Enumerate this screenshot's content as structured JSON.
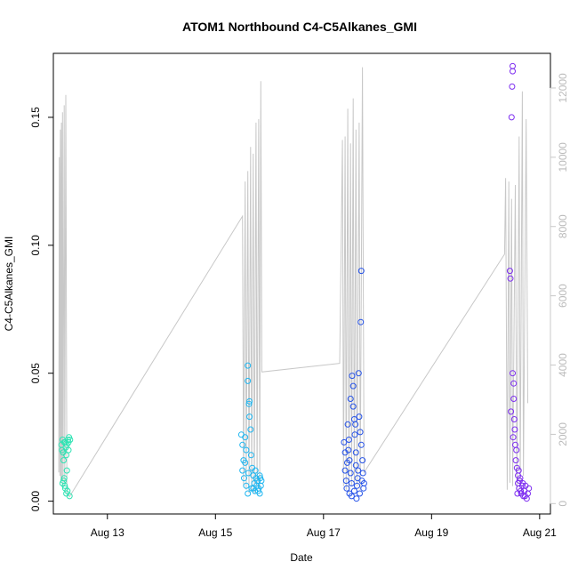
{
  "chart_data": {
    "type": "scatter",
    "title": "ATOM1 Northbound C4-C5Alkanes_GMI",
    "xlabel": "Date",
    "ylabel": "C4-C5Alkanes_GMI",
    "x_ticks": [
      "Aug 13",
      "Aug 15",
      "Aug 17",
      "Aug 19",
      "Aug 21"
    ],
    "y_ticks": [
      "0.00",
      "0.05",
      "0.10",
      "0.15"
    ],
    "y2_ticks": [
      "0",
      "2000",
      "4000",
      "6000",
      "8000",
      "10000",
      "12000"
    ],
    "xlim_days": [
      12.0,
      21.2
    ],
    "ylim": [
      -0.005,
      0.175
    ],
    "y2lim": [
      -300,
      13000
    ],
    "secondary_series_color": "#c8c8c8",
    "series": [
      {
        "color": "#2fe3b3",
        "points": [
          [
            12.15,
            0.022
          ],
          [
            12.16,
            0.02
          ],
          [
            12.17,
            0.024
          ],
          [
            12.18,
            0.019
          ],
          [
            12.19,
            0.016
          ],
          [
            12.2,
            0.023
          ],
          [
            12.2,
            0.009
          ],
          [
            12.21,
            0.006
          ],
          [
            12.22,
            0.023
          ],
          [
            12.22,
            0.005
          ],
          [
            12.23,
            0.021
          ],
          [
            12.24,
            0.018
          ],
          [
            12.25,
            0.022
          ],
          [
            12.25,
            0.012
          ],
          [
            12.26,
            0.004
          ],
          [
            12.27,
            0.024
          ],
          [
            12.28,
            0.02
          ],
          [
            12.29,
            0.025
          ],
          [
            12.3,
            0.002
          ],
          [
            12.31,
            0.024
          ],
          [
            12.17,
            0.007
          ],
          [
            12.19,
            0.008
          ],
          [
            12.24,
            0.003
          ],
          [
            12.28,
            0.023
          ]
        ]
      },
      {
        "color": "#1fb6f0",
        "points": [
          [
            15.48,
            0.026
          ],
          [
            15.5,
            0.022
          ],
          [
            15.52,
            0.016
          ],
          [
            15.5,
            0.012
          ],
          [
            15.53,
            0.009
          ],
          [
            15.55,
            0.025
          ],
          [
            15.55,
            0.015
          ],
          [
            15.57,
            0.006
          ],
          [
            15.6,
            0.053
          ],
          [
            15.6,
            0.047
          ],
          [
            15.62,
            0.038
          ],
          [
            15.63,
            0.039
          ],
          [
            15.63,
            0.033
          ],
          [
            15.65,
            0.028
          ],
          [
            15.6,
            0.003
          ],
          [
            15.66,
            0.018
          ],
          [
            15.68,
            0.013
          ],
          [
            15.7,
            0.01
          ],
          [
            15.7,
            0.005
          ],
          [
            15.72,
            0.007
          ],
          [
            15.73,
            0.004
          ],
          [
            15.75,
            0.009
          ],
          [
            15.76,
            0.006
          ],
          [
            15.78,
            0.008
          ],
          [
            15.8,
            0.005
          ],
          [
            15.82,
            0.01
          ],
          [
            15.82,
            0.003
          ],
          [
            15.84,
            0.006
          ],
          [
            15.85,
            0.008
          ],
          [
            15.57,
            0.02
          ],
          [
            15.61,
            0.011
          ],
          [
            15.67,
            0.005
          ],
          [
            15.74,
            0.012
          ],
          [
            15.79,
            0.004
          ],
          [
            15.83,
            0.009
          ]
        ]
      },
      {
        "color": "#2653e8",
        "points": [
          [
            17.38,
            0.023
          ],
          [
            17.4,
            0.019
          ],
          [
            17.4,
            0.012
          ],
          [
            17.42,
            0.008
          ],
          [
            17.43,
            0.005
          ],
          [
            17.45,
            0.03
          ],
          [
            17.46,
            0.02
          ],
          [
            17.48,
            0.016
          ],
          [
            17.5,
            0.04
          ],
          [
            17.5,
            0.011
          ],
          [
            17.52,
            0.007
          ],
          [
            17.53,
            0.049
          ],
          [
            17.55,
            0.045
          ],
          [
            17.55,
            0.037
          ],
          [
            17.57,
            0.032
          ],
          [
            17.58,
            0.026
          ],
          [
            17.6,
            0.019
          ],
          [
            17.6,
            0.014
          ],
          [
            17.62,
            0.006
          ],
          [
            17.63,
            0.009
          ],
          [
            17.65,
            0.05
          ],
          [
            17.66,
            0.033
          ],
          [
            17.68,
            0.027
          ],
          [
            17.69,
            0.07
          ],
          [
            17.7,
            0.09
          ],
          [
            17.7,
            0.022
          ],
          [
            17.72,
            0.016
          ],
          [
            17.73,
            0.011
          ],
          [
            17.75,
            0.007
          ],
          [
            17.48,
            0.003
          ],
          [
            17.52,
            0.002
          ],
          [
            17.57,
            0.004
          ],
          [
            17.61,
            0.001
          ],
          [
            17.64,
            0.012
          ],
          [
            17.67,
            0.003
          ],
          [
            17.44,
            0.015
          ],
          [
            17.47,
            0.024
          ],
          [
            17.59,
            0.03
          ],
          [
            17.71,
            0.008
          ],
          [
            17.74,
            0.005
          ]
        ]
      },
      {
        "color": "#7d2df0",
        "points": [
          [
            20.45,
            0.09
          ],
          [
            20.46,
            0.087
          ],
          [
            20.48,
            0.15
          ],
          [
            20.49,
            0.162
          ],
          [
            20.5,
            0.168
          ],
          [
            20.5,
            0.17
          ],
          [
            20.5,
            0.05
          ],
          [
            20.52,
            0.046
          ],
          [
            20.52,
            0.04
          ],
          [
            20.53,
            0.032
          ],
          [
            20.54,
            0.028
          ],
          [
            20.55,
            0.022
          ],
          [
            20.56,
            0.016
          ],
          [
            20.58,
            0.013
          ],
          [
            20.6,
            0.01
          ],
          [
            20.6,
            0.007
          ],
          [
            20.62,
            0.005
          ],
          [
            20.63,
            0.008
          ],
          [
            20.65,
            0.004
          ],
          [
            20.66,
            0.003
          ],
          [
            20.68,
            0.006
          ],
          [
            20.7,
            0.002
          ],
          [
            20.72,
            0.004
          ],
          [
            20.74,
            0.006
          ],
          [
            20.76,
            0.001
          ],
          [
            20.78,
            0.003
          ],
          [
            20.8,
            0.005
          ],
          [
            20.57,
            0.02
          ],
          [
            20.61,
            0.012
          ],
          [
            20.64,
            0.009
          ],
          [
            20.69,
            0.007
          ],
          [
            20.73,
            0.002
          ],
          [
            20.47,
            0.035
          ],
          [
            20.51,
            0.025
          ],
          [
            20.59,
            0.003
          ]
        ]
      }
    ],
    "secondary_series": [
      [
        12.1,
        900
      ],
      [
        12.11,
        10000
      ],
      [
        12.12,
        800
      ],
      [
        12.13,
        10800
      ],
      [
        12.14,
        600
      ],
      [
        12.15,
        11000
      ],
      [
        12.16,
        700
      ],
      [
        12.17,
        11300
      ],
      [
        12.18,
        500
      ],
      [
        12.2,
        11500
      ],
      [
        12.21,
        600
      ],
      [
        12.23,
        11800
      ],
      [
        12.25,
        300
      ],
      [
        12.3,
        200
      ],
      [
        15.5,
        8300
      ],
      [
        15.52,
        500
      ],
      [
        15.55,
        9300
      ],
      [
        15.57,
        400
      ],
      [
        15.6,
        9600
      ],
      [
        15.62,
        300
      ],
      [
        15.65,
        10300
      ],
      [
        15.67,
        400
      ],
      [
        15.7,
        10100
      ],
      [
        15.72,
        300
      ],
      [
        15.75,
        11000
      ],
      [
        15.77,
        500
      ],
      [
        15.8,
        11100
      ],
      [
        15.82,
        400
      ],
      [
        15.84,
        12200
      ],
      [
        15.86,
        3800
      ],
      [
        17.3,
        4050
      ],
      [
        17.35,
        10500
      ],
      [
        17.37,
        500
      ],
      [
        17.4,
        10600
      ],
      [
        17.42,
        400
      ],
      [
        17.45,
        11400
      ],
      [
        17.47,
        300
      ],
      [
        17.5,
        10400
      ],
      [
        17.52,
        500
      ],
      [
        17.55,
        11700
      ],
      [
        17.57,
        400
      ],
      [
        17.6,
        10800
      ],
      [
        17.62,
        500
      ],
      [
        17.66,
        11000
      ],
      [
        17.68,
        400
      ],
      [
        17.72,
        12600
      ],
      [
        17.75,
        900
      ],
      [
        20.35,
        7200
      ],
      [
        20.37,
        9400
      ],
      [
        20.4,
        400
      ],
      [
        20.43,
        9300
      ],
      [
        20.45,
        600
      ],
      [
        20.48,
        8800
      ],
      [
        20.5,
        500
      ],
      [
        20.55,
        9200
      ],
      [
        20.58,
        400
      ],
      [
        20.62,
        10600
      ],
      [
        20.64,
        600
      ],
      [
        20.68,
        11900
      ],
      [
        20.7,
        800
      ],
      [
        20.75,
        11100
      ],
      [
        20.78,
        2900
      ]
    ]
  }
}
